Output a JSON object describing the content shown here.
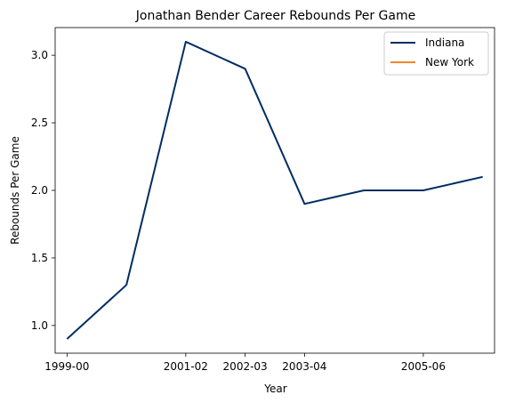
{
  "chart_data": {
    "type": "line",
    "title": "Jonathan Bender Career Rebounds Per Game",
    "xlabel": "Year",
    "ylabel": "Rebounds Per Game",
    "x_tick_labels": [
      "1999-00",
      "2001-02",
      "2002-03",
      "2003-04",
      "2005-06"
    ],
    "x_tick_positions": [
      0,
      2,
      3,
      4,
      6
    ],
    "y_ticks": [
      1.0,
      1.5,
      2.0,
      2.5,
      3.0
    ],
    "y_tick_labels": [
      "1.0",
      "1.5",
      "2.0",
      "2.5",
      "3.0"
    ],
    "xlim": [
      -0.2,
      7.2
    ],
    "ylim": [
      0.795,
      3.205
    ],
    "grid": false,
    "legend_position": "top-right",
    "series": [
      {
        "name": "Indiana",
        "color": "#002d62",
        "x": [
          0,
          1,
          2,
          3,
          4,
          5,
          6,
          7
        ],
        "values": [
          0.9,
          1.3,
          3.1,
          2.9,
          1.9,
          2.0,
          2.0,
          2.1
        ]
      },
      {
        "name": "New York",
        "color": "#f58426",
        "x": [],
        "values": []
      }
    ]
  }
}
